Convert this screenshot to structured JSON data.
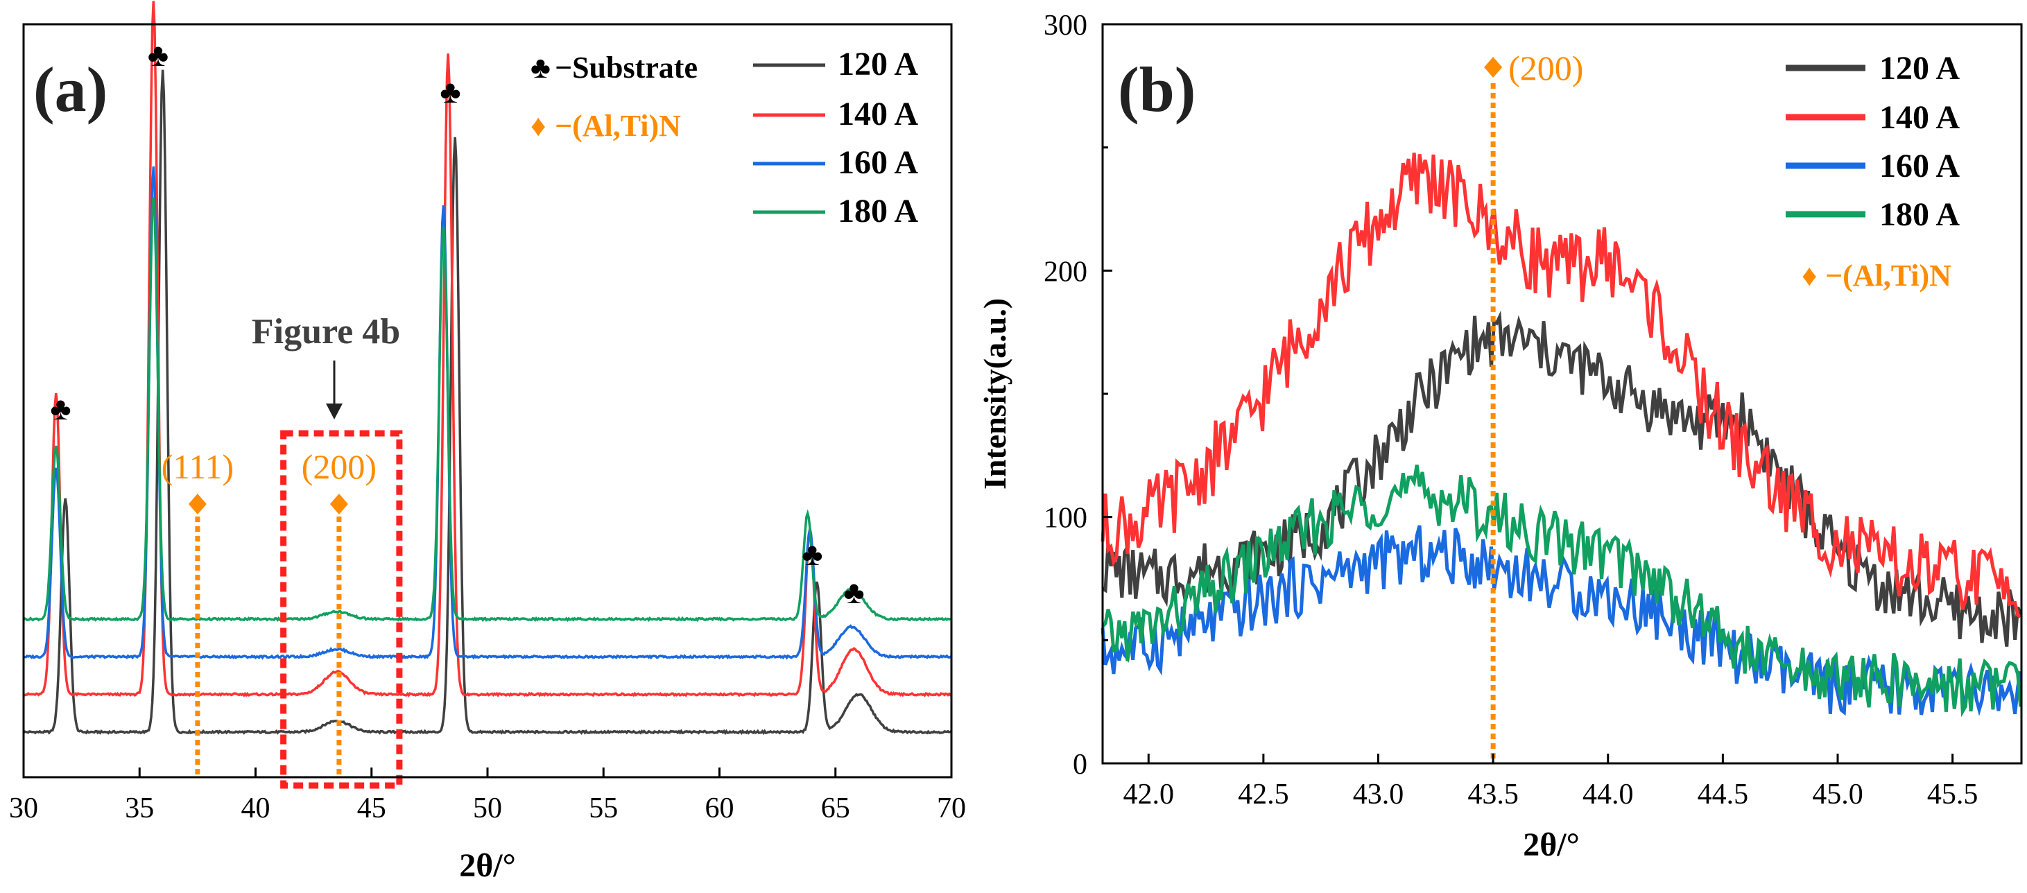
{
  "chart_data": [
    {
      "type": "line",
      "panel_label": "(a)",
      "xlabel": "2θ/°",
      "ylabel": "",
      "xlim": [
        30,
        70
      ],
      "ylim": [
        0,
        100
      ],
      "xticks": [
        "30",
        "35",
        "40",
        "45",
        "50",
        "55",
        "60",
        "65",
        "70"
      ],
      "grid": false,
      "legend": {
        "placement": "top-right",
        "symbol_entries": [
          {
            "symbol": "♣",
            "label": "−Substrate",
            "color": "#000000"
          },
          {
            "symbol": "♦",
            "label": "−(Al,Ti)N",
            "color": "#ff8c00"
          }
        ],
        "line_entries": [
          "120 A",
          "140 A",
          "160 A",
          "180 A"
        ]
      },
      "series": [
        {
          "name": "120 A",
          "color": "#404040",
          "baseline": 6,
          "peaks": [
            [
              31.8,
              31
            ],
            [
              36.0,
              88
            ],
            [
              48.6,
              79
            ],
            [
              64.2,
              20
            ],
            [
              66.0,
              5
            ],
            [
              43.5,
              1.5
            ]
          ]
        },
        {
          "name": "140 A",
          "color": "#ff3333",
          "baseline": 11,
          "peaks": [
            [
              31.4,
              40
            ],
            [
              35.6,
              92
            ],
            [
              48.3,
              85
            ],
            [
              63.9,
              22
            ],
            [
              65.8,
              6
            ],
            [
              43.5,
              3
            ]
          ]
        },
        {
          "name": "160 A",
          "color": "#1a6ae0",
          "baseline": 16,
          "peaks": [
            [
              31.4,
              25
            ],
            [
              35.6,
              65
            ],
            [
              48.1,
              60
            ],
            [
              63.9,
              17
            ],
            [
              65.7,
              4
            ],
            [
              43.5,
              1
            ]
          ]
        },
        {
          "name": "180 A",
          "color": "#10a060",
          "baseline": 21,
          "peaks": [
            [
              31.4,
              23
            ],
            [
              35.6,
              56
            ],
            [
              48.1,
              52
            ],
            [
              63.8,
              14
            ],
            [
              65.7,
              4
            ],
            [
              43.5,
              1
            ]
          ]
        }
      ],
      "annotations": [
        {
          "text": "♣",
          "x": 31.6,
          "kind": "substrate"
        },
        {
          "text": "♣",
          "x": 35.8,
          "kind": "substrate"
        },
        {
          "text": "♣",
          "x": 48.4,
          "kind": "substrate"
        },
        {
          "text": "♣",
          "x": 64.0,
          "kind": "substrate"
        },
        {
          "text": "♣",
          "x": 65.8,
          "kind": "substrate"
        },
        {
          "text": "(111)",
          "x": 37.5,
          "kind": "alti"
        },
        {
          "text": "(200)",
          "x": 43.6,
          "kind": "alti"
        }
      ],
      "box_label": "Figure 4b",
      "box_range": [
        41.2,
        46.2
      ]
    },
    {
      "type": "line",
      "panel_label": "(b)",
      "xlabel": "2θ/°",
      "ylabel": "Intensity(a.u.)",
      "xlim": [
        41.8,
        45.8
      ],
      "ylim": [
        0,
        300
      ],
      "xticks": [
        "42.0",
        "42.5",
        "43.0",
        "43.5",
        "44.0",
        "44.5",
        "45.0",
        "45.5"
      ],
      "yticks": [
        "0",
        "100",
        "200",
        "300"
      ],
      "grid": false,
      "legend": {
        "placement": "top-right",
        "line_entries": [
          "120 A",
          "140 A",
          "160 A",
          "180 A"
        ],
        "symbol_entries": [
          {
            "symbol": "♦",
            "label": "−(Al,Ti)N",
            "color": "#ff8c00"
          }
        ]
      },
      "marker_line": {
        "x": 43.5,
        "label": "(200)"
      },
      "series": [
        {
          "name": "120 A",
          "color": "#404040",
          "x": [
            41.8,
            42.0,
            42.2,
            42.4,
            42.6,
            42.8,
            43.0,
            43.2,
            43.4,
            43.6,
            43.8,
            44.0,
            44.2,
            44.4,
            44.6,
            44.8,
            45.0,
            45.2,
            45.4,
            45.6,
            45.8
          ],
          "y": [
            80,
            75,
            78,
            82,
            88,
            100,
            125,
            150,
            170,
            172,
            165,
            155,
            145,
            138,
            140,
            110,
            85,
            72,
            65,
            60,
            58
          ]
        },
        {
          "name": "140 A",
          "color": "#ff3333",
          "x": [
            41.8,
            42.0,
            42.2,
            42.4,
            42.6,
            42.8,
            43.0,
            43.2,
            43.4,
            43.6,
            43.8,
            44.0,
            44.2,
            44.4,
            44.6,
            44.8,
            45.0,
            45.2,
            45.4,
            45.6,
            45.8
          ],
          "y": [
            95,
            100,
            115,
            135,
            165,
            195,
            220,
            240,
            225,
            210,
            200,
            205,
            185,
            150,
            125,
            105,
            90,
            82,
            78,
            75,
            74
          ]
        },
        {
          "name": "160 A",
          "color": "#1a6ae0",
          "x": [
            41.8,
            42.0,
            42.2,
            42.4,
            42.6,
            42.8,
            43.0,
            43.2,
            43.4,
            43.6,
            43.8,
            44.0,
            44.2,
            44.4,
            44.6,
            44.8,
            45.0,
            45.2,
            45.4,
            45.6,
            45.8
          ],
          "y": [
            45,
            48,
            55,
            62,
            70,
            76,
            82,
            85,
            83,
            78,
            72,
            68,
            62,
            52,
            42,
            35,
            31,
            30,
            30,
            29,
            29
          ]
        },
        {
          "name": "180 A",
          "color": "#10a060",
          "x": [
            41.8,
            42.0,
            42.2,
            42.4,
            42.6,
            42.8,
            43.0,
            43.2,
            43.4,
            43.6,
            43.8,
            44.0,
            44.2,
            44.4,
            44.6,
            44.8,
            45.0,
            45.2,
            45.4,
            45.6,
            45.8
          ],
          "y": [
            50,
            55,
            65,
            78,
            90,
            100,
            108,
            110,
            105,
            96,
            90,
            85,
            75,
            60,
            45,
            38,
            35,
            33,
            32,
            32,
            32
          ]
        }
      ]
    }
  ]
}
